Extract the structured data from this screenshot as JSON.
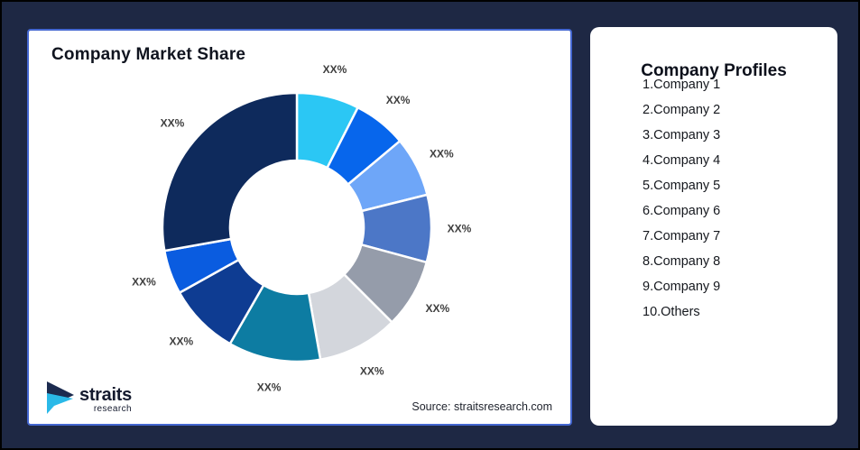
{
  "theme": {
    "background": "#1e2844",
    "frame_border": "#000000",
    "card_border": "#4467d1",
    "slice_gap": "#ffffff",
    "slice_label_color": "#3f3f3f"
  },
  "left_panel": {
    "title": "Company Market Share",
    "source": "Source: straitsresearch.com",
    "logo": {
      "name": "straits",
      "sub": "research"
    }
  },
  "right_panel": {
    "title": "Company Profiles",
    "items": [
      "1.Company 1",
      "2.Company 2",
      "3.Company 3",
      "4.Company 4",
      "5.Company 5",
      "6.Company 6",
      "7.Company 7",
      "8.Company 8",
      "9.Company 9",
      "10.Others"
    ]
  },
  "chart_data": {
    "type": "pie",
    "subtype": "donut",
    "title": "Company Market Share",
    "data_labels_masked": true,
    "start_angle_deg": 0,
    "direction": "clockwise",
    "donut_hole_ratio": 0.5,
    "legend_position": "right-panel-list",
    "segments": [
      {
        "name": "Company 1",
        "label": "XX%",
        "value_pct_est": 7.5,
        "color": "#2bc7f4"
      },
      {
        "name": "Company 2",
        "label": "XX%",
        "value_pct_est": 6.4,
        "color": "#0766ec"
      },
      {
        "name": "Company 3",
        "label": "XX%",
        "value_pct_est": 7.2,
        "color": "#6ea6f8"
      },
      {
        "name": "Company 4",
        "label": "XX%",
        "value_pct_est": 8.1,
        "color": "#4c77c7"
      },
      {
        "name": "Company 5",
        "label": "XX%",
        "value_pct_est": 8.3,
        "color": "#959caa"
      },
      {
        "name": "Company 6",
        "label": "XX%",
        "value_pct_est": 9.7,
        "color": "#d3d6dc"
      },
      {
        "name": "Company 7",
        "label": "XX%",
        "value_pct_est": 11.1,
        "color": "#0d7ca2"
      },
      {
        "name": "Company 8",
        "label": "XX%",
        "value_pct_est": 8.6,
        "color": "#0e3c92"
      },
      {
        "name": "Company 9",
        "label": "XX%",
        "value_pct_est": 5.3,
        "color": "#0a5ce0"
      },
      {
        "name": "Others",
        "label": "XX%",
        "value_pct_est": 27.8,
        "color": "#0e2a5c"
      }
    ]
  }
}
